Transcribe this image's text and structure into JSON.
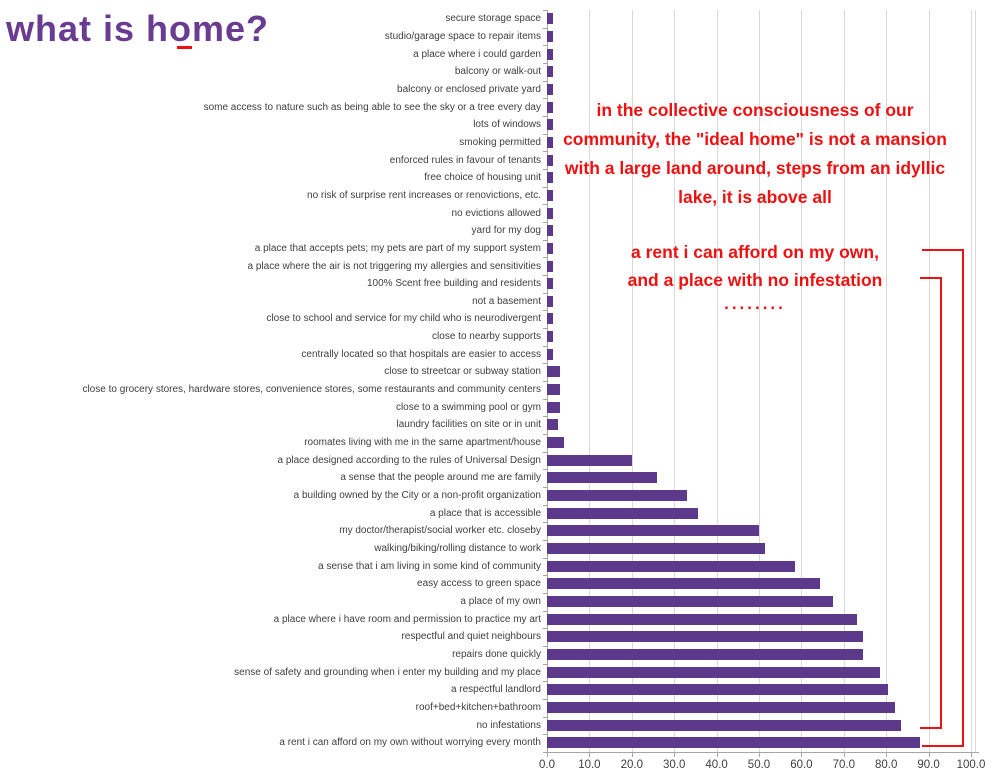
{
  "page_title": "what is home?",
  "title_color": "#693c92",
  "chart_data": {
    "type": "bar",
    "orientation": "horizontal",
    "title": "what is home?",
    "bar_color": "#5c398b",
    "grid": true,
    "xlim": [
      0,
      100
    ],
    "x_ticks": [
      "0.0",
      "10.0",
      "20.0",
      "30.0",
      "40.0",
      "50.0",
      "60.0",
      "70.0",
      "80.0",
      "90.0",
      "100.0"
    ],
    "categories": [
      "secure storage space",
      "studio/garage space to repair items",
      "a place where i could garden",
      "balcony or walk-out",
      "balcony or enclosed private yard",
      "some access to nature such as being able to see the sky or a tree every day",
      "lots of windows",
      "smoking permitted",
      "enforced rules in favour of tenants",
      "free choice of housing unit",
      "no risk of surprise rent increases or renovictions, etc.",
      "no evictions allowed",
      "yard for my dog",
      "a place that accepts pets; my pets are part of my support system",
      "a place where the air is not triggering my allergies and sensitivities",
      "100% Scent free building and residents",
      "not a basement",
      "close to school and service for my child who is neurodivergent",
      "close to nearby supports",
      "centrally located so that hospitals are easier to access",
      "close to streetcar or subway station",
      "close to grocery stores, hardware stores, convenience stores, some restaurants and community centers",
      "close to a swimming pool or gym",
      "laundry facilities on site or in unit",
      "roomates living with me in the same apartment/house",
      "a place designed according to the rules of Universal Design",
      "a sense that the people around me are family",
      "a building owned by the City or a non-profit organization",
      "a place that is accessible",
      "my doctor/therapist/social worker etc. closeby",
      "walking/biking/rolling distance to work",
      "a sense that i am living in some kind of community",
      "easy access to green space",
      "a place of my own",
      "a place where i have room and permission to practice my art",
      "respectful and quiet neighbours",
      "repairs done quickly",
      "sense of safety and grounding when i enter my building and my place",
      "a respectful landlord",
      "roof+bed+kitchen+bathroom",
      "no infestations",
      "a rent i can afford on my own without worrying every month"
    ],
    "values": [
      1.5,
      1.5,
      1.5,
      1.5,
      1.5,
      1.5,
      1.5,
      1.5,
      1.5,
      1.5,
      1.5,
      1.5,
      1.5,
      1.5,
      1.5,
      1.5,
      1.5,
      1.5,
      1.5,
      1.5,
      3,
      3,
      3,
      2.5,
      4,
      20,
      26,
      33,
      35.5,
      50,
      51.5,
      58.5,
      64.5,
      67.5,
      73,
      74.5,
      74.5,
      78.5,
      80.5,
      82,
      83.5,
      88
    ]
  },
  "annotation": {
    "color": "#ee1111",
    "paragraph": "in the collective consciousness of our community, the \"ideal home\" is not a mansion with a large land around, steps from an idyllic lake, it is above all",
    "emphasis_line1": "a rent i can afford on my own,",
    "emphasis_line2": "and a place with no infestation",
    "dots": "........"
  }
}
